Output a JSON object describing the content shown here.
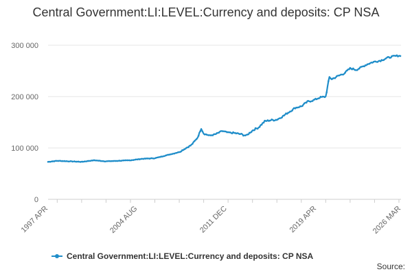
{
  "chart_data": {
    "type": "line",
    "title": "Central Government:LI:LEVEL:Currency and deposits: CP NSA",
    "xlabel": "",
    "ylabel": "",
    "ylim": [
      0,
      300000
    ],
    "yticks": [
      0,
      100000,
      200000,
      300000
    ],
    "ytick_labels": [
      "0",
      "100 000",
      "200 000",
      "300 000"
    ],
    "xtick_labels": [
      "1997 APR",
      "2004 AUG",
      "2011 DEC",
      "2019 APR",
      "2026 MAR"
    ],
    "xtick_years": [
      1997.25,
      2004.58,
      2011.92,
      2019.25,
      2026.17
    ],
    "xlim": [
      1997.25,
      2026.17
    ],
    "color": "#1f8dc9",
    "series": [
      {
        "name": "Central Government:LI:LEVEL:Currency and deposits: CP NSA",
        "x": [
          1997.25,
          1998.0,
          1999.0,
          2000.0,
          2001.0,
          2002.0,
          2003.0,
          2004.0,
          2005.0,
          2006.0,
          2007.0,
          2008.0,
          2009.0,
          2009.5,
          2009.8,
          2010.0,
          2010.5,
          2011.0,
          2011.5,
          2012.0,
          2012.5,
          2013.0,
          2013.5,
          2014.0,
          2014.5,
          2015.0,
          2015.5,
          2016.0,
          2016.5,
          2017.0,
          2017.5,
          2018.0,
          2018.5,
          2019.0,
          2019.5,
          2020.0,
          2020.3,
          2020.5,
          2021.0,
          2021.5,
          2022.0,
          2022.5,
          2023.0,
          2023.5,
          2024.0,
          2024.5,
          2025.0,
          2025.5,
          2026.0,
          2026.17
        ],
        "y": [
          73000,
          75000,
          74000,
          73000,
          76000,
          74000,
          75000,
          76000,
          79000,
          80000,
          86000,
          92000,
          106000,
          120000,
          138000,
          128000,
          124000,
          127000,
          133000,
          130000,
          129000,
          127000,
          124000,
          134000,
          140000,
          152000,
          154000,
          155000,
          162000,
          170000,
          178000,
          181000,
          190000,
          193000,
          198000,
          200000,
          238000,
          234000,
          240000,
          245000,
          255000,
          252000,
          258000,
          264000,
          268000,
          270000,
          275000,
          278000,
          280000,
          278000
        ]
      }
    ]
  },
  "legend": {
    "label": "Central Government:LI:LEVEL:Currency and deposits: CP NSA"
  },
  "source_label": "Source:"
}
